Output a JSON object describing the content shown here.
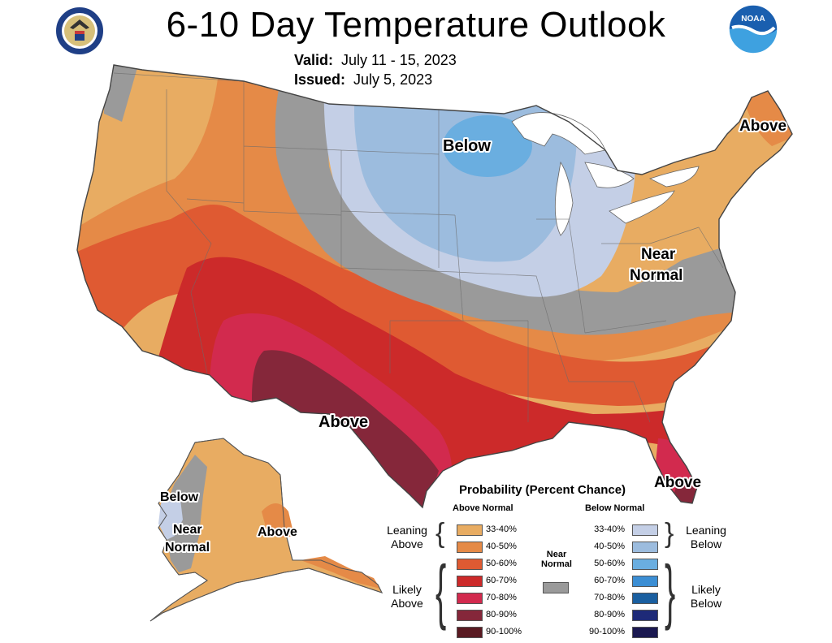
{
  "title": "6-10 Day Temperature Outlook",
  "valid_label": "Valid:",
  "valid_value": "July 11 - 15, 2023",
  "issued_label": "Issued:",
  "issued_value": "July 5, 2023",
  "logos": {
    "left": "dept-of-commerce-seal",
    "right": "noaa-logo",
    "right_text": "NOAA"
  },
  "map_labels": {
    "below_north": "Below",
    "above_northeast": "Above",
    "near_normal_1": "Near",
    "near_normal_2": "Normal",
    "above_texas": "Above",
    "above_florida": "Above",
    "ak_below": "Below",
    "ak_near_1": "Near",
    "ak_near_2": "Normal",
    "ak_above": "Above"
  },
  "legend": {
    "title": "Probability (Percent Chance)",
    "above_header": "Above Normal",
    "below_header": "Below Normal",
    "near_header_1": "Near",
    "near_header_2": "Normal",
    "leaning_above_1": "Leaning",
    "leaning_above_2": "Above",
    "likely_above_1": "Likely",
    "likely_above_2": "Above",
    "leaning_below_1": "Leaning",
    "leaning_below_2": "Below",
    "likely_below_1": "Likely",
    "likely_below_2": "Below",
    "above": [
      {
        "label": "33-40%",
        "color": "#e8ac62"
      },
      {
        "label": "40-50%",
        "color": "#e58a47"
      },
      {
        "label": "50-60%",
        "color": "#df5a32"
      },
      {
        "label": "60-70%",
        "color": "#cc2a2a"
      },
      {
        "label": "70-80%",
        "color": "#d22a4e"
      },
      {
        "label": "80-90%",
        "color": "#85273a"
      },
      {
        "label": "90-100%",
        "color": "#5a1a22"
      }
    ],
    "below": [
      {
        "label": "33-40%",
        "color": "#c4cfe6"
      },
      {
        "label": "40-50%",
        "color": "#9cbcde"
      },
      {
        "label": "50-60%",
        "color": "#6aaee0"
      },
      {
        "label": "60-70%",
        "color": "#3b8ed4"
      },
      {
        "label": "70-80%",
        "color": "#1a5fa0"
      },
      {
        "label": "80-90%",
        "color": "#1e2a78"
      },
      {
        "label": "90-100%",
        "color": "#1a1850"
      }
    ],
    "near_color": "#9a9a9a"
  }
}
